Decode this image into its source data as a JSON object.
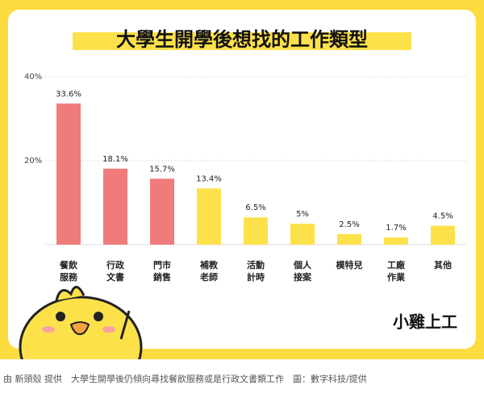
{
  "chart_data": {
    "type": "bar",
    "title": "大學生開學後想找的工作類型",
    "categories": [
      [
        "餐飲",
        "服務"
      ],
      [
        "行政",
        "文書"
      ],
      [
        "門市",
        "銷售"
      ],
      [
        "補教",
        "老師"
      ],
      [
        "活動",
        "計時"
      ],
      [
        "個人",
        "接案"
      ],
      [
        "模特兒"
      ],
      [
        "工廠",
        "作業"
      ],
      [
        "其他"
      ]
    ],
    "values": [
      33.6,
      18.1,
      15.7,
      13.4,
      6.5,
      5,
      2.5,
      1.7,
      4.5
    ],
    "value_labels": [
      "33.6%",
      "18.1%",
      "15.7%",
      "13.4%",
      "6.5%",
      "5%",
      "2.5%",
      "1.7%",
      "4.5%"
    ],
    "colors": [
      "#f07b7b",
      "#f07b7b",
      "#f07b7b",
      "#fde14a",
      "#fde14a",
      "#fde14a",
      "#fde14a",
      "#fde14a",
      "#fde14a"
    ],
    "ylim": [
      0,
      40
    ],
    "yticks": [
      {
        "value": 20,
        "label": "20%"
      },
      {
        "value": 40,
        "label": "40%"
      }
    ],
    "grid": true
  },
  "brand": "小雞上工",
  "caption": "由 新頭殼 提供　大學生開學後仍傾向尋找餐飲服務或是行政文書類工作　圖：數字科技/提供"
}
